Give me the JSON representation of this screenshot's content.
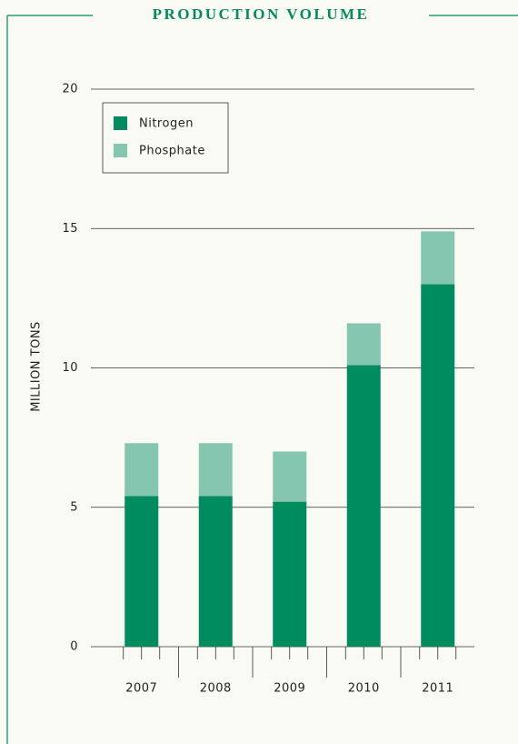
{
  "chart_data": {
    "type": "bar",
    "stacked": true,
    "title": "PRODUCTION VOLUME",
    "ylabel": "MILLION TONS",
    "categories": [
      "2007",
      "2008",
      "2009",
      "2010",
      "2011"
    ],
    "series": [
      {
        "name": "Nitrogen",
        "color": "#008c5e",
        "values": [
          5.4,
          5.4,
          5.2,
          10.1,
          13.0
        ]
      },
      {
        "name": "Phosphate",
        "color": "#85c6b0",
        "values": [
          1.9,
          1.9,
          1.8,
          1.5,
          1.9
        ]
      }
    ],
    "ylim": [
      0,
      20
    ],
    "yticks": [
      0,
      5,
      10,
      15,
      20
    ],
    "grid": true,
    "legend": "upper left"
  }
}
